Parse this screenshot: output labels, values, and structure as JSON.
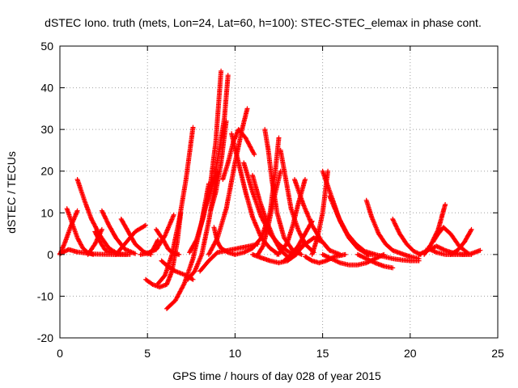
{
  "chart_data": {
    "type": "scatter",
    "title": "dSTEC Iono. truth (mets, Lon=24, Lat=60, h=100): STEC-STEC_elemax in phase cont.",
    "xlabel": "GPS time / hours of day 028 of year 2015",
    "ylabel": "dSTEC  / TECUs",
    "xlim": [
      0,
      25
    ],
    "ylim": [
      -20,
      50
    ],
    "xticks": [
      0,
      5,
      10,
      15,
      20,
      25
    ],
    "yticks": [
      -20,
      -10,
      0,
      10,
      20,
      30,
      40,
      50
    ],
    "grid": true,
    "marker": "plus",
    "color": "#ff0000",
    "series": [
      {
        "x": [
          0.0,
          0.3,
          0.6,
          0.9,
          1.0
        ],
        "y": [
          0.0,
          3.0,
          6.5,
          9.5,
          10.5
        ]
      },
      {
        "x": [
          0.4,
          0.7,
          1.0,
          1.3,
          1.6,
          1.9
        ],
        "y": [
          11.0,
          7.5,
          4.0,
          1.6,
          0.4,
          0.0
        ]
      },
      {
        "x": [
          0.0,
          0.5,
          1.0,
          2.0,
          3.0,
          3.8
        ],
        "y": [
          0.2,
          1.2,
          0.6,
          0.1,
          0.0,
          0.0
        ]
      },
      {
        "x": [
          1.0,
          1.4,
          1.8,
          2.3,
          2.8,
          3.3
        ],
        "y": [
          18.0,
          13.0,
          8.5,
          4.5,
          1.5,
          0.2
        ]
      },
      {
        "x": [
          1.6,
          2.0,
          2.4
        ],
        "y": [
          0.0,
          2.5,
          6.0
        ]
      },
      {
        "x": [
          2.4,
          2.8,
          3.2,
          3.7,
          4.3
        ],
        "y": [
          10.5,
          7.0,
          4.0,
          1.3,
          0.2
        ]
      },
      {
        "x": [
          2.0,
          2.3,
          2.6,
          3.0,
          3.5,
          4.0
        ],
        "y": [
          5.5,
          3.0,
          1.0,
          0.4,
          0.1,
          0.0
        ]
      },
      {
        "x": [
          3.2,
          3.7,
          4.3,
          4.9
        ],
        "y": [
          0.0,
          2.5,
          5.5,
          7.0
        ]
      },
      {
        "x": [
          3.5,
          3.9,
          4.3,
          4.8,
          5.2
        ],
        "y": [
          8.5,
          5.5,
          2.5,
          0.6,
          0.0
        ]
      },
      {
        "x": [
          4.6,
          5.0,
          5.5,
          6.0,
          6.5
        ],
        "y": [
          0.0,
          0.3,
          1.2,
          4.5,
          9.5
        ]
      },
      {
        "x": [
          5.0,
          5.3,
          5.6
        ],
        "y": [
          0.2,
          1.0,
          3.5
        ]
      },
      {
        "x": [
          5.5,
          5.9,
          6.2,
          6.5,
          6.8
        ],
        "y": [
          6.0,
          3.5,
          1.2,
          0.3,
          0.0
        ]
      },
      {
        "x": [
          4.9,
          5.3,
          5.7,
          6.1,
          6.4,
          6.7,
          6.9
        ],
        "y": [
          -6.0,
          -7.2,
          -7.8,
          -7.2,
          -4.0,
          3.0,
          10.0
        ]
      },
      {
        "x": [
          5.6,
          6.0,
          6.4,
          6.8,
          7.2,
          7.6
        ],
        "y": [
          -7.0,
          -5.0,
          0.0,
          8.0,
          18.0,
          30.5
        ]
      },
      {
        "x": [
          6.1,
          6.6,
          7.1,
          7.6,
          8.1,
          8.5
        ],
        "y": [
          -13.0,
          -11.0,
          -7.0,
          -1.0,
          8.0,
          17.0
        ]
      },
      {
        "x": [
          5.8,
          6.2,
          6.6,
          7.2,
          7.6
        ],
        "y": [
          -1.5,
          -3.0,
          -4.0,
          -5.0,
          -6.0
        ]
      },
      {
        "x": [
          7.3,
          7.7,
          8.1,
          8.5,
          9.0
        ],
        "y": [
          -6.0,
          -4.0,
          0.0,
          8.0,
          20.0
        ]
      },
      {
        "x": [
          7.4,
          7.8,
          8.2,
          8.6,
          8.9,
          9.2
        ],
        "y": [
          0.5,
          3.5,
          9.0,
          17.0,
          27.0,
          44.0
        ]
      },
      {
        "x": [
          8.2,
          8.5,
          8.8,
          9.1,
          9.4,
          9.6
        ],
        "y": [
          10.0,
          13.5,
          18.0,
          25.0,
          33.0,
          43.0
        ]
      },
      {
        "x": [
          8.6,
          8.9,
          9.2,
          9.5
        ],
        "y": [
          10.5,
          15.0,
          22.0,
          32.0
        ]
      },
      {
        "x": [
          8.8,
          9.0,
          9.2,
          9.6,
          10.0
        ],
        "y": [
          6.5,
          3.0,
          1.5,
          0.5,
          0.0
        ]
      },
      {
        "x": [
          8.0,
          8.5,
          9.0,
          9.6,
          10.2,
          10.8,
          11.3
        ],
        "y": [
          -4.0,
          -1.5,
          0.5,
          1.0,
          1.5,
          2.0,
          2.5
        ]
      },
      {
        "x": [
          8.5,
          9.0,
          9.5,
          10.0,
          10.4,
          10.7
        ],
        "y": [
          0.0,
          4.0,
          11.0,
          22.0,
          30.0,
          35.0
        ]
      },
      {
        "x": [
          9.3,
          9.6,
          9.9,
          10.2,
          10.6,
          11.1
        ],
        "y": [
          18.0,
          22.0,
          27.0,
          30.0,
          28.0,
          24.0
        ]
      },
      {
        "x": [
          9.8,
          10.2,
          10.6,
          11.0,
          11.5,
          12.0,
          12.5
        ],
        "y": [
          29.0,
          22.0,
          15.0,
          9.0,
          4.0,
          1.5,
          0.0
        ]
      },
      {
        "x": [
          10.5,
          11.0,
          11.5,
          12.0,
          12.5,
          13.0,
          13.4
        ],
        "y": [
          22.0,
          15.0,
          9.0,
          5.0,
          2.5,
          0.8,
          0.0
        ]
      },
      {
        "x": [
          11.0,
          11.4,
          11.8,
          12.2,
          12.6,
          13.0
        ],
        "y": [
          19.0,
          13.0,
          8.0,
          4.0,
          1.0,
          -0.5
        ]
      },
      {
        "x": [
          10.0,
          10.5,
          11.0,
          11.5,
          12.0,
          12.3,
          12.5
        ],
        "y": [
          0.0,
          0.5,
          1.5,
          4.0,
          10.0,
          20.0,
          28.0
        ]
      },
      {
        "x": [
          11.7,
          11.9,
          12.1,
          12.4,
          12.8,
          13.3,
          13.8
        ],
        "y": [
          30.0,
          25.0,
          18.0,
          10.0,
          4.0,
          1.0,
          0.0
        ]
      },
      {
        "x": [
          11.3,
          11.6,
          11.9,
          12.2,
          12.6
        ],
        "y": [
          0.0,
          2.0,
          7.0,
          13.0,
          20.0
        ]
      },
      {
        "x": [
          11.0,
          11.5,
          12.0,
          12.5,
          13.0,
          13.5,
          14.0
        ],
        "y": [
          0.0,
          -0.8,
          -1.5,
          -2.0,
          -1.5,
          0.0,
          3.0
        ]
      },
      {
        "x": [
          12.4,
          12.7,
          13.0,
          13.3,
          13.6,
          14.0
        ],
        "y": [
          0.0,
          1.0,
          3.0,
          7.0,
          12.0,
          18.0
        ]
      },
      {
        "x": [
          12.6,
          12.9,
          13.2,
          13.6,
          14.0,
          14.5
        ],
        "y": [
          25.0,
          18.0,
          11.0,
          6.0,
          2.5,
          0.5
        ]
      },
      {
        "x": [
          12.8,
          13.2,
          13.6,
          14.0,
          14.4
        ],
        "y": [
          -1.5,
          0.0,
          2.0,
          5.0,
          8.0
        ]
      },
      {
        "x": [
          13.2,
          13.6,
          14.0,
          14.5,
          15.0,
          15.4
        ],
        "y": [
          0.0,
          0.8,
          2.5,
          4.0,
          3.0,
          1.0
        ]
      },
      {
        "x": [
          13.4,
          13.9,
          14.4,
          14.9,
          15.4,
          16.0
        ],
        "y": [
          18.0,
          12.0,
          7.0,
          3.5,
          1.0,
          0.0
        ]
      },
      {
        "x": [
          14.0,
          14.4,
          14.8,
          15.2,
          15.7,
          16.3
        ],
        "y": [
          -0.5,
          -1.5,
          -2.0,
          -1.5,
          -0.5,
          0.0
        ]
      },
      {
        "x": [
          14.4,
          14.7,
          15.0,
          15.3
        ],
        "y": [
          0.0,
          4.0,
          10.0,
          20.0
        ]
      },
      {
        "x": [
          15.0,
          15.5,
          16.0,
          16.5,
          17.0,
          17.6
        ],
        "y": [
          20.0,
          14.0,
          8.0,
          4.0,
          1.5,
          0.0
        ]
      },
      {
        "x": [
          15.4,
          15.9,
          16.4,
          16.9,
          17.4,
          18.0
        ],
        "y": [
          14.0,
          9.0,
          5.0,
          2.5,
          0.8,
          0.0
        ]
      },
      {
        "x": [
          15.0,
          15.5,
          16.0,
          16.5,
          17.0,
          17.5,
          18.0,
          18.5
        ],
        "y": [
          0.0,
          -1.0,
          -2.0,
          -2.5,
          -2.5,
          -2.0,
          -1.0,
          0.0
        ]
      },
      {
        "x": [
          17.5,
          17.8,
          18.2,
          18.6,
          19.0,
          19.5,
          20.0,
          20.5
        ],
        "y": [
          13.0,
          9.0,
          5.0,
          2.5,
          1.0,
          0.2,
          -0.5,
          -1.0
        ]
      },
      {
        "x": [
          17.0,
          17.5,
          18.0,
          18.5,
          19.0
        ],
        "y": [
          0.0,
          -1.0,
          -2.0,
          -2.8,
          -3.2
        ]
      },
      {
        "x": [
          19.0,
          19.4,
          19.8,
          20.2,
          20.6
        ],
        "y": [
          8.5,
          5.0,
          2.5,
          0.8,
          0.0
        ]
      },
      {
        "x": [
          17.5,
          18.0,
          18.5,
          19.0,
          19.5,
          20.0,
          20.5
        ],
        "y": [
          0.0,
          0.0,
          -0.5,
          -1.0,
          -1.3,
          -1.5,
          -1.5
        ]
      },
      {
        "x": [
          20.5,
          21.0,
          21.5,
          22.0,
          22.5,
          23.0,
          23.5
        ],
        "y": [
          0.0,
          1.0,
          2.0,
          1.0,
          0.3,
          0.0,
          0.0
        ]
      },
      {
        "x": [
          20.8,
          21.2,
          21.6,
          21.8,
          22.0
        ],
        "y": [
          0.0,
          2.5,
          6.0,
          9.0,
          12.0
        ]
      },
      {
        "x": [
          21.3,
          21.6,
          21.9,
          22.3,
          22.8,
          23.3
        ],
        "y": [
          3.0,
          5.0,
          6.5,
          5.0,
          2.0,
          0.3
        ]
      },
      {
        "x": [
          21.0,
          21.5,
          22.0,
          22.5,
          23.0,
          23.5,
          24.0
        ],
        "y": [
          1.5,
          0.5,
          0.0,
          0.0,
          0.0,
          0.2,
          1.0
        ]
      },
      {
        "x": [
          22.3,
          22.7,
          23.1,
          23.5
        ],
        "y": [
          0.0,
          1.0,
          3.0,
          6.0
        ]
      }
    ]
  }
}
